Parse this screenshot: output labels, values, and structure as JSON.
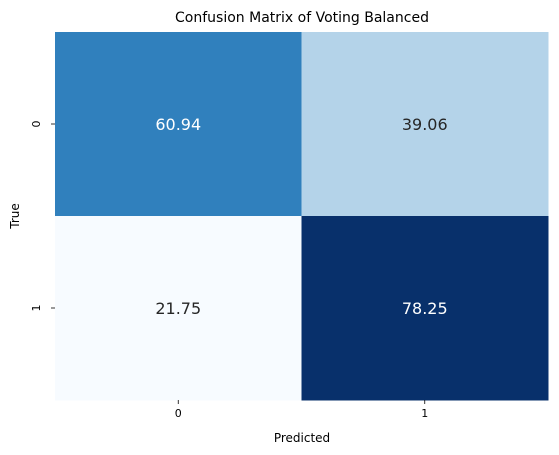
{
  "chart_data": {
    "type": "heatmap",
    "title": "Confusion Matrix of Voting Balanced",
    "xlabel": "Predicted",
    "ylabel": "True",
    "x_categories": [
      "0",
      "1"
    ],
    "y_categories": [
      "0",
      "1"
    ],
    "values": [
      [
        60.94,
        39.06
      ],
      [
        21.75,
        78.25
      ]
    ],
    "value_labels": [
      "60.94",
      "39.06",
      "21.75",
      "78.25"
    ],
    "colormap": "Blues",
    "colorbar": false,
    "grid": false
  }
}
